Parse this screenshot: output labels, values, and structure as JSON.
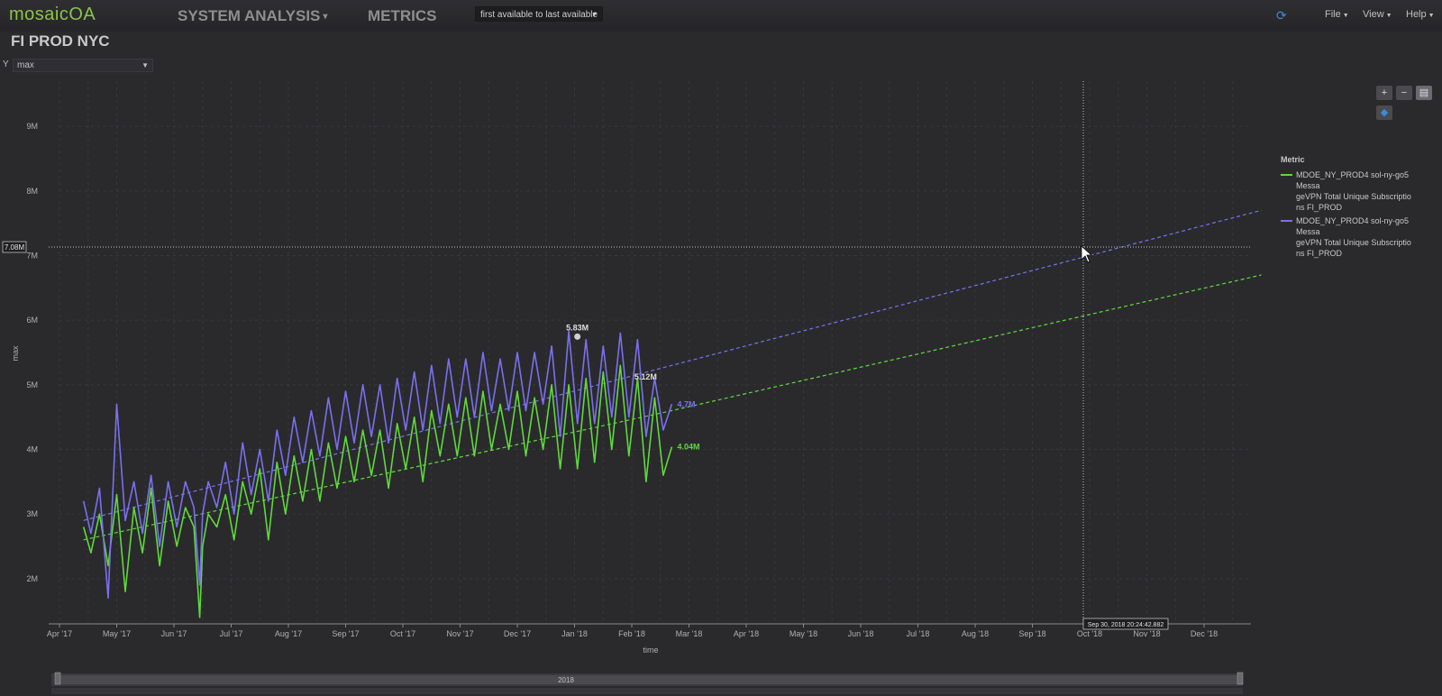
{
  "app": {
    "logo": "mosaicOA",
    "nav": [
      {
        "label": "SYSTEM ANALYSIS",
        "caret": "▾"
      },
      {
        "label": "METRICS"
      }
    ],
    "range_select": "first available to last available",
    "menus": [
      "File",
      "View",
      "Help"
    ],
    "page_title": "FI PROD NYC"
  },
  "controls": {
    "y_axis_letter": "Y",
    "y_select": "max"
  },
  "tooltip": {
    "cursor_value": "7.08M",
    "cursor_time": "Sep 30, 2018 20:24:42.882"
  },
  "legend": {
    "title": "Metric",
    "items": [
      {
        "label_lines": [
          "MDOE_NY_PROD4 sol-ny-go5 Messa",
          "geVPN Total Unique Subscriptio",
          "ns FI_PROD"
        ],
        "color": "#5fd93c"
      },
      {
        "label_lines": [
          "MDOE_NY_PROD4 sol-ny-go5 Messa",
          "geVPN Total Unique Subscriptio",
          "ns FI_PROD"
        ],
        "color": "#7a70ee"
      }
    ]
  },
  "navigator": {
    "label": "2018"
  },
  "colors": {
    "green": "#5fd93c",
    "purple": "#7a70ee",
    "accent": "#8bc34a"
  },
  "chart_data": {
    "type": "line",
    "xlabel": "time",
    "ylabel": "max",
    "ylim": [
      1300000,
      9700000
    ],
    "x_ticks": [
      "Apr '17",
      "May '17",
      "Jun '17",
      "Jul '17",
      "Aug '17",
      "Sep '17",
      "Oct '17",
      "Nov '17",
      "Dec '17",
      "Jan '18",
      "Feb '18",
      "Mar '18",
      "Apr '18",
      "May '18",
      "Jun '18",
      "Jul '18",
      "Aug '18",
      "Sep '18",
      "Oct '18",
      "Nov '18",
      "Dec '18"
    ],
    "y_ticks": [
      {
        "value": 2000000,
        "label": "2M"
      },
      {
        "value": 3000000,
        "label": "3M"
      },
      {
        "value": 4000000,
        "label": "4M"
      },
      {
        "value": 5000000,
        "label": "5M"
      },
      {
        "value": 6000000,
        "label": "6M"
      },
      {
        "value": 7000000,
        "label": "7M"
      },
      {
        "value": 8000000,
        "label": "8M"
      },
      {
        "value": 9000000,
        "label": "9M"
      }
    ],
    "series": [
      {
        "color": "#5fd93c",
        "x": [
          0.42,
          0.55,
          0.7,
          0.85,
          1.0,
          1.15,
          1.3,
          1.45,
          1.6,
          1.75,
          1.9,
          2.05,
          2.2,
          2.35,
          2.45,
          2.5,
          2.6,
          2.75,
          2.9,
          3.05,
          3.2,
          3.35,
          3.5,
          3.65,
          3.8,
          3.95,
          4.1,
          4.25,
          4.4,
          4.55,
          4.7,
          4.85,
          5.0,
          5.15,
          5.3,
          5.45,
          5.6,
          5.75,
          5.9,
          6.05,
          6.2,
          6.35,
          6.5,
          6.65,
          6.8,
          6.95,
          7.1,
          7.25,
          7.4,
          7.55,
          7.7,
          7.85,
          8.0,
          8.15,
          8.3,
          8.45,
          8.6,
          8.75,
          8.9,
          9.05,
          9.2,
          9.35,
          9.5,
          9.65,
          9.8,
          9.95,
          10.1,
          10.25,
          10.4,
          10.55,
          10.7
        ],
        "values": [
          2800000,
          2400000,
          3000000,
          2200000,
          3300000,
          1800000,
          3100000,
          2400000,
          3400000,
          2200000,
          3200000,
          2500000,
          3100000,
          2800000,
          1400000,
          2500000,
          3000000,
          2800000,
          3300000,
          2600000,
          3500000,
          3000000,
          3700000,
          2600000,
          3800000,
          3000000,
          3900000,
          3200000,
          4000000,
          3200000,
          4100000,
          3400000,
          4200000,
          3500000,
          4300000,
          3600000,
          4300000,
          3400000,
          4400000,
          3700000,
          4500000,
          3500000,
          4600000,
          3900000,
          4700000,
          3900000,
          4800000,
          3900000,
          4900000,
          4000000,
          4700000,
          4000000,
          4900000,
          3900000,
          4800000,
          4000000,
          5000000,
          3700000,
          5000000,
          3700000,
          5100000,
          3800000,
          5200000,
          4000000,
          5300000,
          3900000,
          5100000,
          3500000,
          4800000,
          3600000,
          4040000
        ]
      },
      {
        "color": "#7a70ee",
        "x": [
          0.42,
          0.55,
          0.7,
          0.85,
          1.0,
          1.15,
          1.3,
          1.45,
          1.6,
          1.75,
          1.9,
          2.05,
          2.2,
          2.35,
          2.45,
          2.5,
          2.6,
          2.75,
          2.9,
          3.05,
          3.2,
          3.35,
          3.5,
          3.65,
          3.8,
          3.95,
          4.1,
          4.25,
          4.4,
          4.55,
          4.7,
          4.85,
          5.0,
          5.15,
          5.3,
          5.45,
          5.6,
          5.75,
          5.9,
          6.05,
          6.2,
          6.35,
          6.5,
          6.65,
          6.8,
          6.95,
          7.1,
          7.25,
          7.4,
          7.55,
          7.7,
          7.85,
          8.0,
          8.15,
          8.3,
          8.45,
          8.6,
          8.75,
          8.9,
          9.05,
          9.2,
          9.35,
          9.5,
          9.65,
          9.8,
          9.95,
          10.1,
          10.25,
          10.4,
          10.55,
          10.7
        ],
        "values": [
          3200000,
          2700000,
          3400000,
          1700000,
          4700000,
          2900000,
          3500000,
          2700000,
          3600000,
          2500000,
          3500000,
          2800000,
          3500000,
          3100000,
          1900000,
          3000000,
          3500000,
          3100000,
          3800000,
          3000000,
          4100000,
          3300000,
          4000000,
          3200000,
          4300000,
          3600000,
          4500000,
          3800000,
          4600000,
          3900000,
          4800000,
          4000000,
          4900000,
          4100000,
          5000000,
          4200000,
          5000000,
          4100000,
          5100000,
          4300000,
          5200000,
          4300000,
          5300000,
          4400000,
          5400000,
          4500000,
          5400000,
          4500000,
          5500000,
          4600000,
          5400000,
          4600000,
          5500000,
          4600000,
          5500000,
          4700000,
          5600000,
          4200000,
          5830000,
          4400000,
          5700000,
          4400000,
          5600000,
          4500000,
          5800000,
          4500000,
          5700000,
          4200000,
          5100000,
          4300000,
          4700000
        ]
      },
      {
        "color": "#5fd93c",
        "style": "dashed",
        "x": [
          0.42,
          10.7,
          21.0
        ],
        "values": [
          2600000,
          4600000,
          6700000
        ]
      },
      {
        "color": "#7a70ee",
        "style": "dashed",
        "x": [
          0.42,
          10.7,
          21.0
        ],
        "values": [
          2900000,
          5300000,
          7700000
        ]
      }
    ],
    "annotations": [
      {
        "text": "5.83M",
        "x": 9.05,
        "value": 5830000,
        "color": "#dddddd"
      },
      {
        "text": "5.12M",
        "x": 9.95,
        "value": 5120000,
        "color": "#dddddd"
      },
      {
        "text": "4.7M",
        "x": 10.7,
        "value": 4700000,
        "color": "#7a70ee"
      },
      {
        "text": "4.04M",
        "x": 10.7,
        "value": 4040000,
        "color": "#5fd93c"
      }
    ]
  }
}
